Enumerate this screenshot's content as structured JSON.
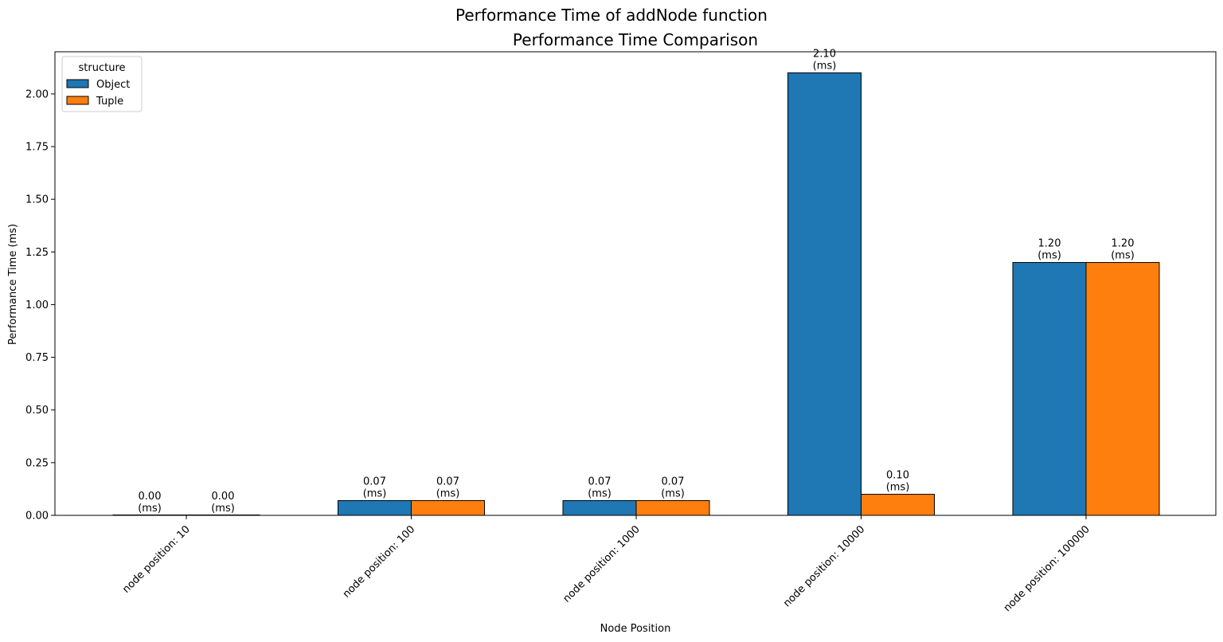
{
  "chart_data": {
    "type": "bar",
    "suptitle": "Performance Time of addNode function",
    "title": "Performance Time Comparison",
    "xlabel": "Node Position",
    "ylabel": "Performance Time (ms)",
    "categories": [
      "node position: 10",
      "node position: 100",
      "node position: 1000",
      "node position: 10000",
      "node position: 100000"
    ],
    "series": [
      {
        "name": "Object",
        "values": [
          0.0,
          0.07,
          0.07,
          2.1,
          1.2
        ],
        "color": "#1f77b4"
      },
      {
        "name": "Tuple",
        "values": [
          0.0,
          0.07,
          0.07,
          0.1,
          1.2
        ],
        "color": "#ff7f0e"
      }
    ],
    "data_labels": {
      "Object": [
        "0.00",
        "0.07",
        "0.07",
        "2.10",
        "1.20"
      ],
      "Tuple": [
        "0.00",
        "0.07",
        "0.07",
        "0.10",
        "1.20"
      ]
    },
    "data_label_unit": "(ms)",
    "yticks": [
      "0.00",
      "0.25",
      "0.50",
      "0.75",
      "1.00",
      "1.25",
      "1.50",
      "1.75",
      "2.00"
    ],
    "ylim": [
      0,
      2.2
    ],
    "legend": {
      "title": "structure",
      "placement": "top-left"
    },
    "grid": false
  }
}
